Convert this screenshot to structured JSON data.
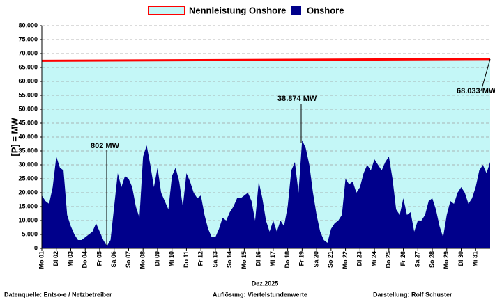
{
  "chart_data": {
    "type": "area",
    "legend": "top",
    "grid": true,
    "xlabel": "Dez.2025",
    "ylabel": "[P] = MW",
    "footer": [
      "Datenquelle:  Entso-e  / Netzbetreiber",
      "Auflösung: Viertelstundenwerte",
      "Darstellung:  Rolf Schuster"
    ],
    "annotations": [
      "802 MW",
      "38.874 MW",
      "68.033 MW"
    ],
    "xlim": [
      1,
      32
    ],
    "xticks": [
      {
        "value": 1,
        "label": "Mo 01"
      },
      {
        "value": 2,
        "label": "Di 02"
      },
      {
        "value": 3,
        "label": "Mi 03"
      },
      {
        "value": 4,
        "label": "Do 04"
      },
      {
        "value": 5,
        "label": "Fr 05"
      },
      {
        "value": 6,
        "label": "Sa 06"
      },
      {
        "value": 7,
        "label": "So 07"
      },
      {
        "value": 8,
        "label": "Mo 08"
      },
      {
        "value": 9,
        "label": "Di 09"
      },
      {
        "value": 10,
        "label": "Mi 10"
      },
      {
        "value": 11,
        "label": "Do 11"
      },
      {
        "value": 12,
        "label": "Fr 12"
      },
      {
        "value": 13,
        "label": "Sa 13"
      },
      {
        "value": 14,
        "label": "So 14"
      },
      {
        "value": 15,
        "label": "Mo 15"
      },
      {
        "value": 16,
        "label": "Di 16"
      },
      {
        "value": 17,
        "label": "Mi 17"
      },
      {
        "value": 18,
        "label": "Do 18"
      },
      {
        "value": 19,
        "label": "Fr 19"
      },
      {
        "value": 20,
        "label": "Sa 20"
      },
      {
        "value": 21,
        "label": "So 21"
      },
      {
        "value": 22,
        "label": "Mo 22"
      },
      {
        "value": 23,
        "label": "Di 23"
      },
      {
        "value": 24,
        "label": "Mi 24"
      },
      {
        "value": 25,
        "label": "Do 25"
      },
      {
        "value": 26,
        "label": "Fr 26"
      },
      {
        "value": 27,
        "label": "Sa 27"
      },
      {
        "value": 28,
        "label": "So 28"
      },
      {
        "value": 29,
        "label": "Mo 29"
      },
      {
        "value": 30,
        "label": "Di 30"
      },
      {
        "value": 31,
        "label": "Mi 31"
      }
    ],
    "ylim": [
      0,
      80000
    ],
    "yticks": [
      0,
      {
        "value": 5000,
        "label": "5.000"
      },
      {
        "value": 10000,
        "label": "10.000"
      },
      {
        "value": 15000,
        "label": "15.000"
      },
      {
        "value": 20000,
        "label": "20.000"
      },
      {
        "value": 25000,
        "label": "25.000"
      },
      {
        "value": 30000,
        "label": "30.000"
      },
      {
        "value": 35000,
        "label": "35.000"
      },
      {
        "value": 40000,
        "label": "40.000"
      },
      {
        "value": 45000,
        "label": "45.000"
      },
      {
        "value": 50000,
        "label": "50.000"
      },
      {
        "value": 55000,
        "label": "55.000"
      },
      {
        "value": 60000,
        "label": "60.000"
      },
      {
        "value": 65000,
        "label": "65.000"
      },
      {
        "value": 70000,
        "label": "70.000"
      },
      {
        "value": 75000,
        "label": "75.000"
      },
      {
        "value": 80000,
        "label": "80.000"
      }
    ],
    "series": [
      {
        "name": "Nennleistung Onshore",
        "color": "#ff0000",
        "fill": "#c4f7f7",
        "x": [
          1,
          32
        ],
        "values": [
          67400,
          68033
        ]
      },
      {
        "name": "Onshore",
        "color": "#00008b",
        "x": [
          1,
          1.25,
          1.5,
          1.75,
          2,
          2.25,
          2.5,
          2.75,
          3,
          3.25,
          3.5,
          3.75,
          4,
          4.25,
          4.5,
          4.75,
          5,
          5.25,
          5.5,
          5.75,
          6,
          6.25,
          6.5,
          6.75,
          7,
          7.25,
          7.5,
          7.75,
          8,
          8.25,
          8.5,
          8.75,
          9,
          9.25,
          9.5,
          9.75,
          10,
          10.25,
          10.5,
          10.75,
          11,
          11.25,
          11.5,
          11.75,
          12,
          12.25,
          12.5,
          12.75,
          13,
          13.25,
          13.5,
          13.75,
          14,
          14.25,
          14.5,
          14.75,
          15,
          15.25,
          15.5,
          15.75,
          16,
          16.25,
          16.5,
          16.75,
          17,
          17.25,
          17.5,
          17.75,
          18,
          18.25,
          18.5,
          18.75,
          19,
          19.25,
          19.5,
          19.75,
          20,
          20.25,
          20.5,
          20.75,
          21,
          21.25,
          21.5,
          21.75,
          22,
          22.25,
          22.5,
          22.75,
          23,
          23.25,
          23.5,
          23.75,
          24,
          24.25,
          24.5,
          24.75,
          25,
          25.25,
          25.5,
          25.75,
          26,
          26.25,
          26.5,
          26.75,
          27,
          27.25,
          27.5,
          27.75,
          28,
          28.25,
          28.5,
          28.75,
          29,
          29.25,
          29.5,
          29.75,
          30,
          30.25,
          30.5,
          30.75,
          31,
          31.25,
          31.5,
          31.75,
          32
        ],
        "values": [
          19000,
          17000,
          16000,
          22000,
          33000,
          29000,
          28000,
          12000,
          8000,
          5000,
          3000,
          3000,
          4000,
          5000,
          6000,
          9000,
          6000,
          3000,
          802,
          3000,
          15000,
          27000,
          22000,
          26000,
          25000,
          22000,
          15000,
          11000,
          33000,
          37000,
          30000,
          22000,
          29000,
          20000,
          17000,
          14000,
          26000,
          29000,
          24000,
          15000,
          27000,
          24000,
          20000,
          18000,
          19000,
          12000,
          7000,
          4000,
          4000,
          7000,
          11000,
          10000,
          13000,
          15000,
          18000,
          18000,
          19000,
          20000,
          17000,
          10000,
          24000,
          18000,
          10000,
          6000,
          10000,
          6000,
          10000,
          8000,
          15000,
          28000,
          31000,
          20000,
          38874,
          36000,
          30000,
          20000,
          12000,
          6000,
          3000,
          2000,
          7000,
          9000,
          10000,
          12000,
          25000,
          23000,
          24000,
          20000,
          22000,
          27000,
          30000,
          28000,
          32000,
          30000,
          28000,
          31000,
          33000,
          25000,
          14000,
          12000,
          18000,
          12000,
          13000,
          6000,
          10000,
          10000,
          12000,
          17000,
          18000,
          14000,
          8000,
          4000,
          12000,
          17000,
          16000,
          20000,
          22000,
          20000,
          16000,
          18000,
          22000,
          28000,
          30000,
          27000,
          31000
        ]
      }
    ]
  }
}
